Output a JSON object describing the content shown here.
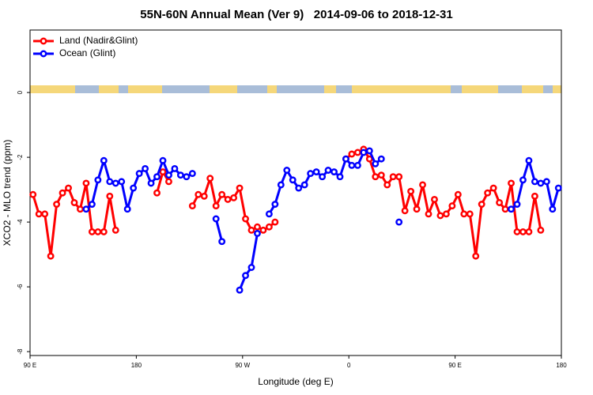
{
  "chart_data": {
    "type": "line",
    "title": "55N-60N Annual Mean (Ver 9)   2014-09-06 to 2018-12-31",
    "x_label": "Longitude (deg E)",
    "y_label": "XCO2 - MLO trend (ppm)",
    "xlim": [
      90,
      540
    ],
    "ylim": [
      -8.12,
      1.93
    ],
    "xticks": [
      {
        "value": 90,
        "label": "90 E"
      },
      180,
      {
        "value": 270,
        "label": "90 W"
      },
      {
        "value": 360,
        "label": "0"
      },
      {
        "value": 450,
        "label": "90 E"
      },
      {
        "value": 540,
        "label": "180"
      }
    ],
    "yticks": [
      0,
      -2,
      -4,
      -6,
      -8
    ],
    "legend": "top-left",
    "x": [
      92.5,
      97.5,
      102.5,
      107.5,
      112.5,
      117.5,
      122.5,
      127.5,
      132.5,
      137.5,
      142.5,
      147.5,
      152.5,
      157.5,
      162.5,
      167.5,
      172.5,
      177.5,
      182.5,
      187.5,
      192.5,
      197.5,
      202.5,
      207.5,
      212.5,
      217.5,
      222.5,
      227.5,
      232.5,
      237.5,
      242.5,
      247.5,
      252.5,
      257.5,
      262.5,
      267.5,
      272.5,
      277.5,
      282.5,
      287.5,
      292.5,
      297.5,
      302.5,
      307.5,
      312.5,
      317.5,
      322.5,
      327.5,
      332.5,
      337.5,
      342.5,
      347.5,
      352.5,
      357.5,
      362.5,
      367.5,
      372.5,
      377.5,
      382.5,
      387.5,
      392.5,
      397.5,
      402.5,
      407.5,
      412.5,
      417.5,
      422.5,
      427.5,
      432.5,
      437.5,
      442.5,
      447.5,
      452.5,
      457.5,
      462.5,
      467.5,
      472.5,
      477.5,
      482.5,
      487.5,
      492.5,
      497.5,
      502.5,
      507.5,
      512.5,
      517.5,
      522.5,
      527.5,
      532.5,
      537.5
    ],
    "series": [
      {
        "name": "Land (Nadir&Glint)",
        "color": "#ff0000",
        "values": [
          -3.15,
          -3.75,
          -3.75,
          -5.05,
          -3.45,
          -3.1,
          -2.95,
          -3.4,
          -3.6,
          -2.8,
          -4.3,
          -4.3,
          -4.3,
          -3.2,
          -4.25,
          null,
          null,
          null,
          null,
          null,
          null,
          -3.1,
          -2.45,
          -2.75,
          null,
          null,
          null,
          -3.5,
          -3.15,
          -3.2,
          -2.65,
          -3.5,
          -3.15,
          -3.3,
          -3.25,
          -2.95,
          -3.9,
          -4.25,
          -4.15,
          -4.25,
          -4.15,
          -4.0,
          null,
          null,
          null,
          null,
          null,
          null,
          null,
          null,
          null,
          null,
          null,
          -2.05,
          -1.9,
          -1.85,
          -1.75,
          -2.05,
          -2.6,
          -2.55,
          -2.85,
          -2.6,
          -2.6,
          -3.65,
          -3.05,
          -3.6,
          -2.85,
          -3.75,
          -3.3,
          -3.8,
          -3.75,
          -3.5,
          -3.15,
          -3.75,
          -3.75,
          -5.05,
          -3.45,
          -3.1,
          -2.95,
          -3.4,
          -3.6,
          -2.8,
          -4.3,
          -4.3,
          -4.3,
          -3.2,
          -4.25,
          null,
          null,
          null
        ]
      },
      {
        "name": "Ocean (Glint)",
        "color": "#0000ff",
        "values": [
          null,
          null,
          null,
          null,
          null,
          null,
          null,
          null,
          null,
          -3.6,
          -3.45,
          -2.7,
          -2.1,
          -2.75,
          -2.8,
          -2.75,
          -3.6,
          -2.95,
          -2.5,
          -2.35,
          -2.8,
          -2.6,
          -2.1,
          -2.55,
          -2.35,
          -2.55,
          -2.6,
          -2.5,
          null,
          null,
          null,
          -3.9,
          -4.6,
          null,
          null,
          -6.1,
          -5.65,
          -5.4,
          -4.35,
          null,
          -3.75,
          -3.45,
          -2.85,
          -2.4,
          -2.7,
          -2.95,
          -2.85,
          -2.5,
          -2.45,
          -2.6,
          -2.4,
          -2.45,
          -2.6,
          -2.05,
          -2.25,
          -2.25,
          -1.85,
          -1.8,
          -2.2,
          -2.05,
          null,
          null,
          -4.0,
          null,
          null,
          null,
          null,
          null,
          null,
          null,
          null,
          null,
          null,
          null,
          null,
          null,
          null,
          null,
          null,
          null,
          null,
          -3.6,
          -3.45,
          -2.7,
          -2.1,
          -2.75,
          -2.8,
          -2.75,
          -3.6,
          -2.95
        ]
      }
    ]
  }
}
